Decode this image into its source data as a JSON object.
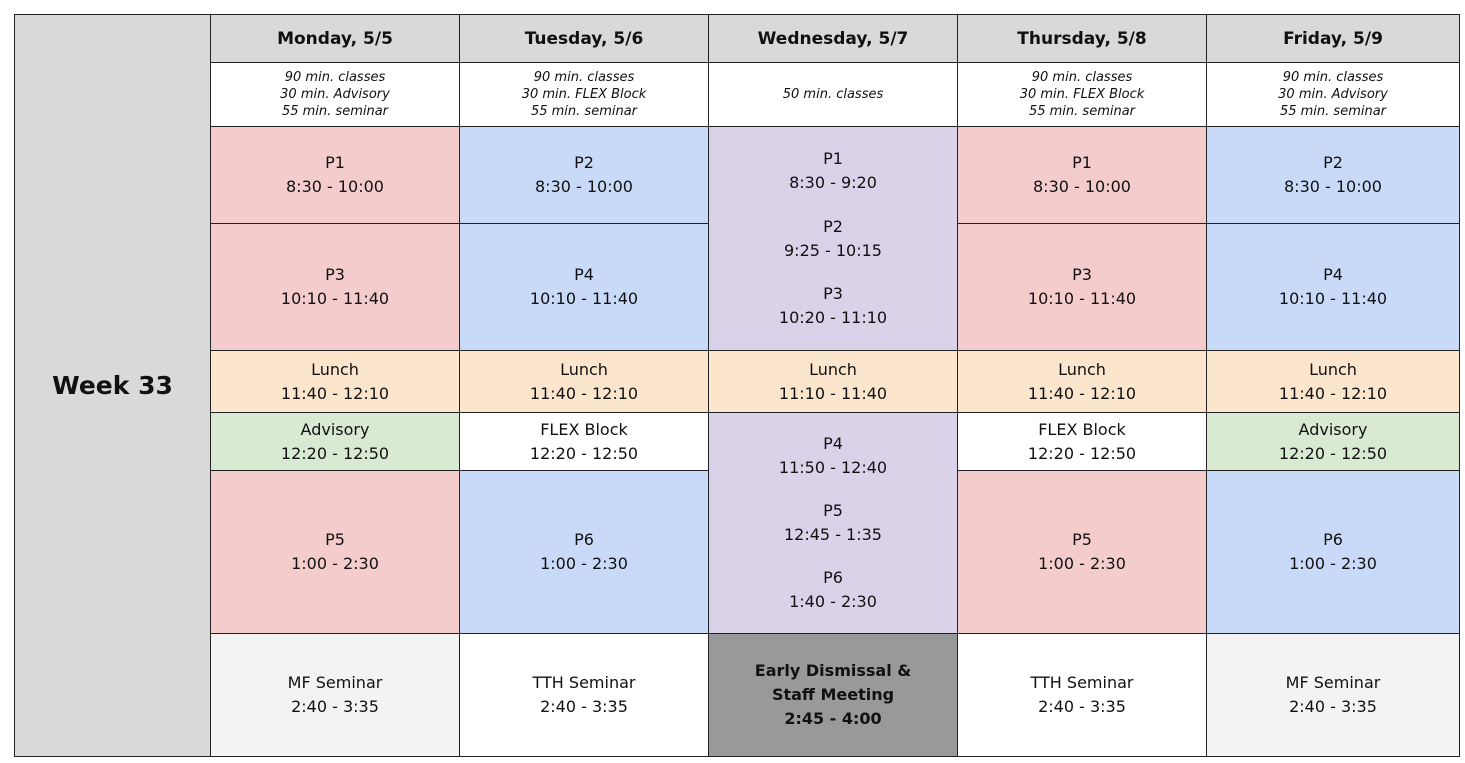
{
  "week": "Week 33",
  "days": [
    {
      "header": "Monday, 5/5",
      "notes": [
        "90 min. classes",
        "30 min. Advisory",
        "55 min. seminar"
      ],
      "blocks": [
        {
          "lines": [
            "P1",
            "8:30 - 10:00"
          ]
        },
        {
          "lines": [
            "P3",
            "10:10 - 11:40"
          ]
        },
        {
          "lines": [
            "Lunch",
            "11:40 - 12:10"
          ]
        },
        {
          "lines": [
            "Advisory",
            "12:20 - 12:50"
          ]
        },
        {
          "lines": [
            "P5",
            "1:00 - 2:30"
          ]
        },
        {
          "lines": [
            "MF Seminar",
            "2:40 - 3:35"
          ]
        }
      ]
    },
    {
      "header": "Tuesday, 5/6",
      "notes": [
        "90 min. classes",
        "30 min. FLEX Block",
        "55 min. seminar"
      ],
      "blocks": [
        {
          "lines": [
            "P2",
            "8:30 - 10:00"
          ]
        },
        {
          "lines": [
            "P4",
            "10:10 - 11:40"
          ]
        },
        {
          "lines": [
            "Lunch",
            "11:40 - 12:10"
          ]
        },
        {
          "lines": [
            "FLEX Block",
            "12:20 - 12:50"
          ]
        },
        {
          "lines": [
            "P6",
            "1:00 - 2:30"
          ]
        },
        {
          "lines": [
            "TTH Seminar",
            "2:40 - 3:35"
          ]
        }
      ]
    },
    {
      "header": "Wednesday, 5/7",
      "notes": [
        "50 min. classes"
      ],
      "blocks": [
        {
          "lines": [
            "P1",
            "8:30 - 9:20"
          ]
        },
        {
          "lines": [
            "P2",
            "9:25 - 10:15"
          ]
        },
        {
          "lines": [
            "P3",
            "10:20 - 11:10"
          ]
        },
        {
          "lines": [
            "Lunch",
            "11:10 - 11:40"
          ]
        },
        {
          "lines": [
            "P4",
            "11:50 - 12:40"
          ]
        },
        {
          "lines": [
            "P5",
            "12:45 - 1:35"
          ]
        },
        {
          "lines": [
            "P6",
            "1:40 - 2:30"
          ]
        },
        {
          "lines": [
            "Early Dismissal &",
            "Staff Meeting",
            "2:45 - 4:00"
          ]
        }
      ]
    },
    {
      "header": "Thursday, 5/8",
      "notes": [
        "90 min. classes",
        "30 min. FLEX Block",
        "55 min. seminar"
      ],
      "blocks": [
        {
          "lines": [
            "P1",
            "8:30 - 10:00"
          ]
        },
        {
          "lines": [
            "P3",
            "10:10 - 11:40"
          ]
        },
        {
          "lines": [
            "Lunch",
            "11:40 - 12:10"
          ]
        },
        {
          "lines": [
            "FLEX Block",
            "12:20 - 12:50"
          ]
        },
        {
          "lines": [
            "P5",
            "1:00 - 2:30"
          ]
        },
        {
          "lines": [
            "TTH Seminar",
            "2:40 - 3:35"
          ]
        }
      ]
    },
    {
      "header": "Friday, 5/9",
      "notes": [
        "90 min. classes",
        "30 min. Advisory",
        "55 min. seminar"
      ],
      "blocks": [
        {
          "lines": [
            "P2",
            "8:30 - 10:00"
          ]
        },
        {
          "lines": [
            "P4",
            "10:10 - 11:40"
          ]
        },
        {
          "lines": [
            "Lunch",
            "11:40 - 12:10"
          ]
        },
        {
          "lines": [
            "Advisory",
            "12:20 - 12:50"
          ]
        },
        {
          "lines": [
            "P6",
            "1:00 - 2:30"
          ]
        },
        {
          "lines": [
            "MF Seminar",
            "2:40 - 3:35"
          ]
        }
      ]
    }
  ]
}
